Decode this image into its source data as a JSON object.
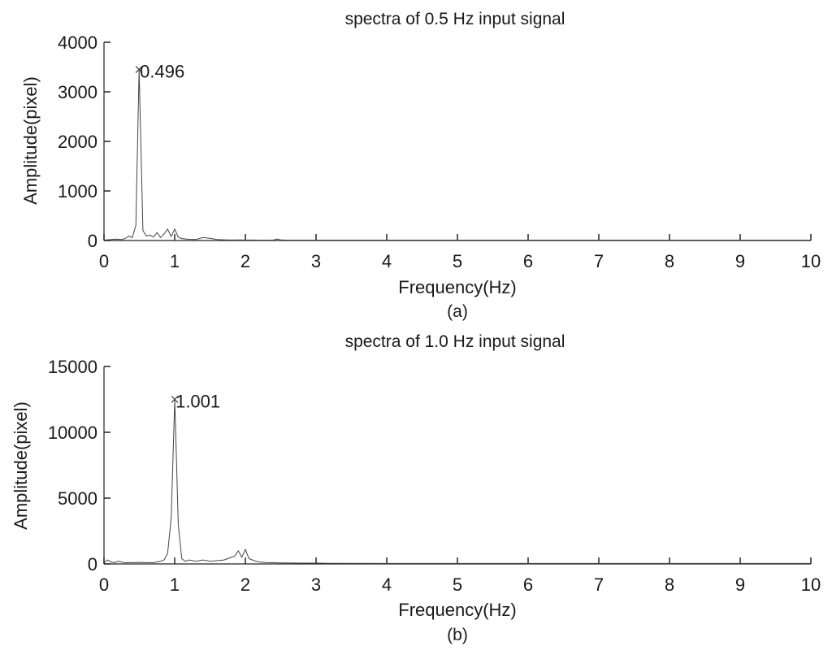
{
  "chart_data": [
    {
      "type": "line",
      "title": "spectra of 0.5 Hz input signal",
      "xlabel": "Frequency(Hz)",
      "ylabel": "Amplitude(pixel)",
      "caption": "(a)",
      "xlim": [
        0,
        10
      ],
      "ylim": [
        0,
        4000
      ],
      "xticks": [
        0,
        1,
        2,
        3,
        4,
        5,
        6,
        7,
        8,
        9,
        10
      ],
      "yticks": [
        0,
        1000,
        2000,
        3000,
        4000
      ],
      "grid": false,
      "peak": {
        "x": 0.496,
        "y": 3450,
        "label": "0.496"
      },
      "series": [
        {
          "x": [
            0,
            0.05,
            0.1,
            0.15,
            0.2,
            0.25,
            0.3,
            0.35,
            0.4,
            0.45,
            0.496,
            0.55,
            0.6,
            0.65,
            0.7,
            0.75,
            0.8,
            0.85,
            0.9,
            0.95,
            1.0,
            1.05,
            1.1,
            1.2,
            1.3,
            1.4,
            1.5,
            1.6,
            1.7,
            1.8,
            1.9,
            2.0,
            2.1,
            2.2,
            2.3,
            2.4,
            2.45,
            2.5,
            2.6,
            2.8,
            3.0,
            4.0,
            5.0,
            6.0,
            7.0,
            8.0,
            9.0,
            10.0
          ],
          "y": [
            10,
            15,
            20,
            30,
            25,
            20,
            40,
            90,
            60,
            300,
            3450,
            200,
            90,
            110,
            70,
            160,
            60,
            130,
            230,
            80,
            230,
            70,
            40,
            25,
            20,
            60,
            45,
            20,
            15,
            10,
            12,
            10,
            10,
            8,
            8,
            10,
            30,
            12,
            8,
            8,
            8,
            8,
            8,
            8,
            8,
            8,
            8,
            8
          ]
        }
      ]
    },
    {
      "type": "line",
      "title": "spectra of 1.0 Hz input signal",
      "xlabel": "Frequency(Hz)",
      "ylabel": "Amplitude(pixel)",
      "caption": "(b)",
      "xlim": [
        0,
        10
      ],
      "ylim": [
        0,
        15000
      ],
      "xticks": [
        0,
        1,
        2,
        3,
        4,
        5,
        6,
        7,
        8,
        9,
        10
      ],
      "yticks": [
        0,
        5000,
        10000,
        15000
      ],
      "grid": false,
      "peak": {
        "x": 1.001,
        "y": 12500,
        "label": "1.001"
      },
      "series": [
        {
          "x": [
            0,
            0.05,
            0.1,
            0.15,
            0.2,
            0.25,
            0.3,
            0.35,
            0.4,
            0.5,
            0.6,
            0.7,
            0.8,
            0.85,
            0.9,
            0.95,
            1.001,
            1.05,
            1.1,
            1.15,
            1.2,
            1.3,
            1.4,
            1.5,
            1.6,
            1.7,
            1.8,
            1.85,
            1.9,
            1.95,
            2.0,
            2.05,
            2.1,
            2.15,
            2.2,
            2.3,
            2.5,
            2.8,
            3.0,
            3.2,
            4.0,
            5.0,
            6.0,
            7.0,
            8.0,
            9.0,
            10.0
          ],
          "y": [
            80,
            300,
            150,
            100,
            200,
            150,
            80,
            100,
            100,
            120,
            100,
            100,
            200,
            300,
            800,
            3500,
            12500,
            3000,
            400,
            200,
            300,
            200,
            300,
            200,
            250,
            300,
            500,
            600,
            1000,
            500,
            1100,
            400,
            300,
            200,
            150,
            100,
            80,
            60,
            60,
            50,
            40,
            40,
            40,
            40,
            40,
            40,
            40
          ]
        }
      ]
    }
  ]
}
